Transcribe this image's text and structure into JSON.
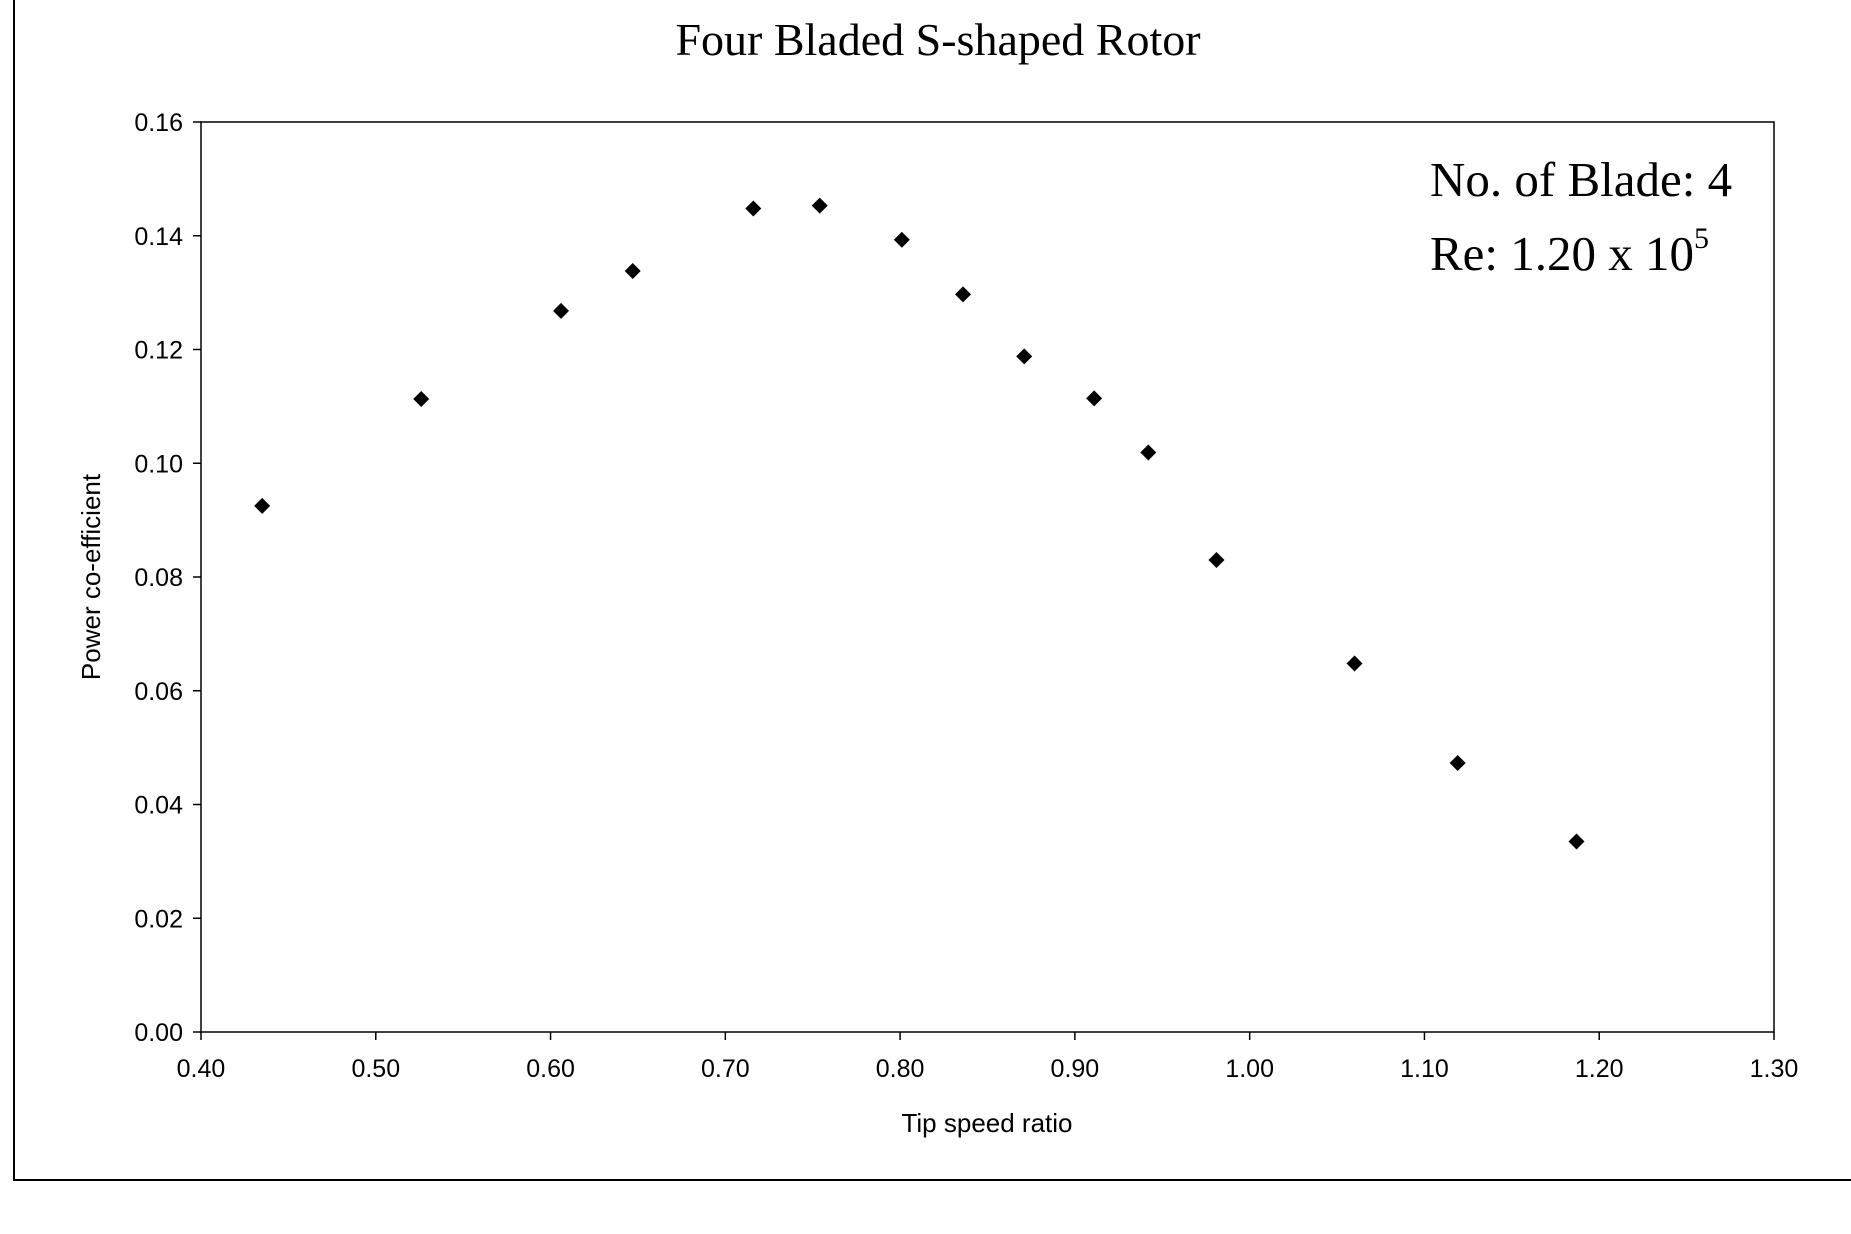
{
  "chart_data": {
    "type": "scatter",
    "title": "Four Bladed S-shaped Rotor",
    "xlabel": "Tip speed ratio",
    "ylabel": "Power co-efficient",
    "xlim": [
      0.4,
      1.3
    ],
    "ylim": [
      0.0,
      0.16
    ],
    "xticks": [
      "0.40",
      "0.50",
      "0.60",
      "0.70",
      "0.80",
      "0.90",
      "1.00",
      "1.10",
      "1.20",
      "1.30"
    ],
    "yticks": [
      "0.00",
      "0.02",
      "0.04",
      "0.06",
      "0.08",
      "0.10",
      "0.12",
      "0.14",
      "0.16"
    ],
    "grid": false,
    "legend": "none",
    "marker": "diamond",
    "marker_color": "#000000",
    "annotations": {
      "blades": "No. of Blade: 4",
      "re_prefix": "Re: 1.20 x 10",
      "re_exponent": "5"
    },
    "points": [
      {
        "x": 0.435,
        "y": 0.0925
      },
      {
        "x": 0.526,
        "y": 0.1113
      },
      {
        "x": 0.606,
        "y": 0.1268
      },
      {
        "x": 0.647,
        "y": 0.1338
      },
      {
        "x": 0.716,
        "y": 0.1448
      },
      {
        "x": 0.754,
        "y": 0.1453
      },
      {
        "x": 0.801,
        "y": 0.1393
      },
      {
        "x": 0.836,
        "y": 0.1297
      },
      {
        "x": 0.871,
        "y": 0.1188
      },
      {
        "x": 0.911,
        "y": 0.1114
      },
      {
        "x": 0.942,
        "y": 0.1019
      },
      {
        "x": 0.981,
        "y": 0.083
      },
      {
        "x": 1.06,
        "y": 0.0648
      },
      {
        "x": 1.119,
        "y": 0.0473
      },
      {
        "x": 1.187,
        "y": 0.0335
      }
    ]
  }
}
